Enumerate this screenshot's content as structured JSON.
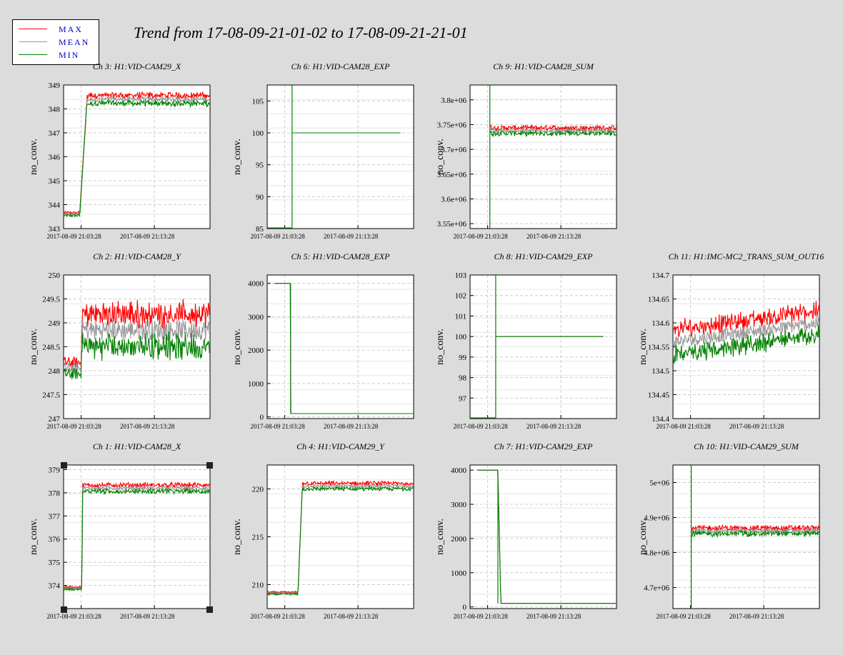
{
  "title": "Trend from 17-08-09-21-01-02 to 17-08-09-21-21-01",
  "legend": [
    {
      "label": "MAX",
      "color": "#ff0000"
    },
    {
      "label": "MEAN",
      "color": "#999999"
    },
    {
      "label": "MIN",
      "color": "#008000"
    }
  ],
  "ylabel": "no_conv.",
  "xticks": [
    "2017-08-09 21:03:28",
    "2017-08-09 21:13:28"
  ],
  "chart_data": [
    {
      "type": "line",
      "title": "Ch 3: H1:VID-CAM29_X",
      "ylabel": "no_conv.",
      "ylim": [
        343,
        349
      ],
      "yticks": [
        343,
        344,
        345,
        346,
        347,
        348,
        349
      ],
      "ytick_labels": [
        "343",
        "344",
        "345",
        "346",
        "347",
        "348",
        "349"
      ],
      "xlim": [
        0,
        20
      ],
      "xtick_values": [
        2.4,
        12.4
      ],
      "xtick_labels": [
        "2017-08-09 21:03:28",
        "2017-08-09 21:13:28"
      ],
      "grid": true,
      "shape": "step",
      "step_x": [
        2.2,
        3.2
      ],
      "base": 343.6,
      "level": 348.4,
      "noise": 0.15,
      "end": 20,
      "series": [
        {
          "name": "MAX",
          "color": "#ff0000"
        },
        {
          "name": "MEAN",
          "color": "#999999"
        },
        {
          "name": "MIN",
          "color": "#008000"
        }
      ]
    },
    {
      "type": "line",
      "title": "Ch 6: H1:VID-CAM28_EXP",
      "ylabel": "no_conv.",
      "ylim": [
        85,
        107.5
      ],
      "yticks": [
        85,
        90,
        95,
        100,
        105
      ],
      "ytick_labels": [
        "85",
        "90",
        "95",
        "100",
        "105"
      ],
      "xlim": [
        0,
        20
      ],
      "xtick_values": [
        2.4,
        12.4
      ],
      "xtick_labels": [
        "2017-08-09 21:03:28",
        "2017-08-09 21:13:28"
      ],
      "grid": true,
      "shape": "exp",
      "spike_x": 3.4,
      "level": 100,
      "end": 18.2,
      "series": [
        {
          "name": "MAX",
          "color": "#ff0000"
        },
        {
          "name": "MEAN",
          "color": "#999999"
        },
        {
          "name": "MIN",
          "color": "#008000"
        }
      ]
    },
    {
      "type": "line",
      "title": "Ch 9: H1:VID-CAM28_SUM",
      "ylabel": "no_conv.",
      "ylim": [
        3540000,
        3830000
      ],
      "yticks": [
        3550000,
        3600000,
        3650000,
        3700000,
        3750000,
        3800000
      ],
      "ytick_labels": [
        "3.55e+06",
        "3.6e+06",
        "3.65e+06",
        "3.7e+06",
        "3.75e+06",
        "3.8e+06"
      ],
      "xlim": [
        0,
        20
      ],
      "xtick_values": [
        2.4,
        12.4
      ],
      "xtick_labels": [
        "2017-08-09 21:03:28",
        "2017-08-09 21:13:28"
      ],
      "grid": true,
      "shape": "jump",
      "spike_x": 2.7,
      "level": 3738000,
      "noise": 6000,
      "end": 20,
      "series": [
        {
          "name": "MAX",
          "color": "#ff0000"
        },
        {
          "name": "MEAN",
          "color": "#999999"
        },
        {
          "name": "MIN",
          "color": "#008000"
        }
      ]
    },
    {
      "type": "line",
      "title": "Ch 2: H1:VID-CAM28_Y",
      "ylabel": "no_conv.",
      "ylim": [
        247,
        250
      ],
      "yticks": [
        247,
        247.5,
        248,
        248.5,
        249,
        249.5,
        250
      ],
      "ytick_labels": [
        "247",
        "247.5",
        "248",
        "248.5",
        "249",
        "249.5",
        "250"
      ],
      "xlim": [
        0,
        20
      ],
      "xtick_values": [
        2.4,
        12.4
      ],
      "xtick_labels": [
        "2017-08-09 21:03:28",
        "2017-08-09 21:13:28"
      ],
      "grid": true,
      "shape": "step",
      "step_x": [
        2.4,
        2.5
      ],
      "base": 248.05,
      "level": 248.85,
      "noise": 0.3,
      "end": 20,
      "series": [
        {
          "name": "MAX",
          "color": "#ff0000"
        },
        {
          "name": "MEAN",
          "color": "#999999"
        },
        {
          "name": "MIN",
          "color": "#008000"
        }
      ]
    },
    {
      "type": "line",
      "title": "Ch 5: H1:VID-CAM28_EXP",
      "ylabel": "no_conv.",
      "ylim": [
        -50,
        4250
      ],
      "yticks": [
        0,
        1000,
        2000,
        3000,
        4000
      ],
      "ytick_labels": [
        "0",
        "1000",
        "2000",
        "3000",
        "4000"
      ],
      "xlim": [
        0,
        20
      ],
      "xtick_values": [
        2.4,
        12.4
      ],
      "xtick_labels": [
        "2017-08-09 21:03:28",
        "2017-08-09 21:13:28"
      ],
      "grid": true,
      "shape": "drop",
      "start_x": 1.0,
      "drop_x": 3.2,
      "base": 4000,
      "level": 100,
      "end": 20,
      "series": [
        {
          "name": "MAX",
          "color": "#ff0000"
        },
        {
          "name": "MEAN",
          "color": "#999999"
        },
        {
          "name": "MIN",
          "color": "#008000"
        }
      ]
    },
    {
      "type": "line",
      "title": "Ch 8: H1:VID-CAM29_EXP",
      "ylabel": "no_conv.",
      "ylim": [
        96,
        103
      ],
      "yticks": [
        97,
        98,
        99,
        100,
        101,
        102,
        103
      ],
      "ytick_labels": [
        "97",
        "98",
        "99",
        "100",
        "101",
        "102",
        "103"
      ],
      "xlim": [
        0,
        20
      ],
      "xtick_values": [
        2.4,
        12.4
      ],
      "xtick_labels": [
        "2017-08-09 21:03:28",
        "2017-08-09 21:13:28"
      ],
      "grid": true,
      "shape": "exp",
      "spike_x": 3.5,
      "level": 100,
      "end": 18.2,
      "series": [
        {
          "name": "MAX",
          "color": "#ff0000"
        },
        {
          "name": "MEAN",
          "color": "#999999"
        },
        {
          "name": "MIN",
          "color": "#008000"
        }
      ]
    },
    {
      "type": "line",
      "title": "Ch 11: H1:IMC-MC2_TRANS_SUM_OUT16",
      "ylabel": "no_conv.",
      "ylim": [
        134.4,
        134.7
      ],
      "yticks": [
        134.4,
        134.45,
        134.5,
        134.55,
        134.6,
        134.65,
        134.7
      ],
      "ytick_labels": [
        "134.4",
        "134.45",
        "134.5",
        "134.55",
        "134.6",
        "134.65",
        "134.7"
      ],
      "xlim": [
        0,
        20
      ],
      "xtick_values": [
        2.4,
        12.4
      ],
      "xtick_labels": [
        "2017-08-09 21:03:28",
        "2017-08-09 21:13:28"
      ],
      "grid": true,
      "shape": "drift",
      "base": 134.56,
      "level": 134.6,
      "noise": 0.03,
      "end": 20,
      "series": [
        {
          "name": "MAX",
          "color": "#ff0000"
        },
        {
          "name": "MEAN",
          "color": "#999999"
        },
        {
          "name": "MIN",
          "color": "#008000"
        }
      ]
    },
    {
      "type": "line",
      "title": "Ch 1: H1:VID-CAM28_X",
      "ylabel": "no_conv.",
      "ylim": [
        373,
        379.2
      ],
      "yticks": [
        374,
        375,
        376,
        377,
        378,
        379
      ],
      "ytick_labels": [
        "374",
        "375",
        "376",
        "377",
        "378",
        "379"
      ],
      "xlim": [
        0,
        20
      ],
      "xtick_values": [
        2.4,
        12.4
      ],
      "xtick_labels": [
        "2017-08-09 21:03:28",
        "2017-08-09 21:13:28"
      ],
      "grid": true,
      "shape": "step",
      "step_x": [
        2.5,
        2.6
      ],
      "base": 373.88,
      "level": 378.2,
      "noise": 0.12,
      "end": 20,
      "series": [
        {
          "name": "MAX",
          "color": "#ff0000"
        },
        {
          "name": "MEAN",
          "color": "#999999"
        },
        {
          "name": "MIN",
          "color": "#008000"
        }
      ]
    },
    {
      "type": "line",
      "title": "Ch 4: H1:VID-CAM29_Y",
      "ylabel": "no_conv.",
      "ylim": [
        207.5,
        222.5
      ],
      "yticks": [
        210,
        215,
        220
      ],
      "ytick_labels": [
        "210",
        "215",
        "220"
      ],
      "xlim": [
        0,
        20
      ],
      "xtick_values": [
        2.4,
        12.4
      ],
      "xtick_labels": [
        "2017-08-09 21:03:28",
        "2017-08-09 21:13:28"
      ],
      "grid": true,
      "shape": "step",
      "step_x": [
        4.2,
        4.8
      ],
      "base": 209.1,
      "level": 220.3,
      "noise": 0.25,
      "end": 20,
      "series": [
        {
          "name": "MAX",
          "color": "#ff0000"
        },
        {
          "name": "MEAN",
          "color": "#999999"
        },
        {
          "name": "MIN",
          "color": "#008000"
        }
      ]
    },
    {
      "type": "line",
      "title": "Ch 7: H1:VID-CAM29_EXP",
      "ylabel": "no_conv.",
      "ylim": [
        -50,
        4150
      ],
      "yticks": [
        0,
        1000,
        2000,
        3000,
        4000
      ],
      "ytick_labels": [
        "0",
        "1000",
        "2000",
        "3000",
        "4000"
      ],
      "xlim": [
        0,
        20
      ],
      "xtick_values": [
        2.4,
        12.4
      ],
      "xtick_labels": [
        "2017-08-09 21:03:28",
        "2017-08-09 21:13:28"
      ],
      "grid": true,
      "shape": "drop",
      "start_x": 1.0,
      "drop_x": 3.8,
      "drop_end": 4.2,
      "base": 4000,
      "level": 100,
      "end": 20,
      "series": [
        {
          "name": "MAX",
          "color": "#ff0000"
        },
        {
          "name": "MEAN",
          "color": "#999999"
        },
        {
          "name": "MIN",
          "color": "#008000"
        }
      ]
    },
    {
      "type": "line",
      "title": "Ch 10: H1:VID-CAM29_SUM",
      "ylabel": "no_conv.",
      "ylim": [
        4640000,
        5050000
      ],
      "yticks": [
        4700000,
        4800000,
        4900000,
        5000000
      ],
      "ytick_labels": [
        "4.7e+06",
        "4.8e+06",
        "4.9e+06",
        "5e+06"
      ],
      "xlim": [
        0,
        20
      ],
      "xtick_values": [
        2.4,
        12.4
      ],
      "xtick_labels": [
        "2017-08-09 21:03:28",
        "2017-08-09 21:13:28"
      ],
      "grid": true,
      "shape": "jump",
      "spike_x": 2.5,
      "level": 4862000,
      "noise": 9000,
      "end": 20,
      "series": [
        {
          "name": "MAX",
          "color": "#ff0000"
        },
        {
          "name": "MEAN",
          "color": "#999999"
        },
        {
          "name": "MIN",
          "color": "#008000"
        }
      ]
    }
  ]
}
